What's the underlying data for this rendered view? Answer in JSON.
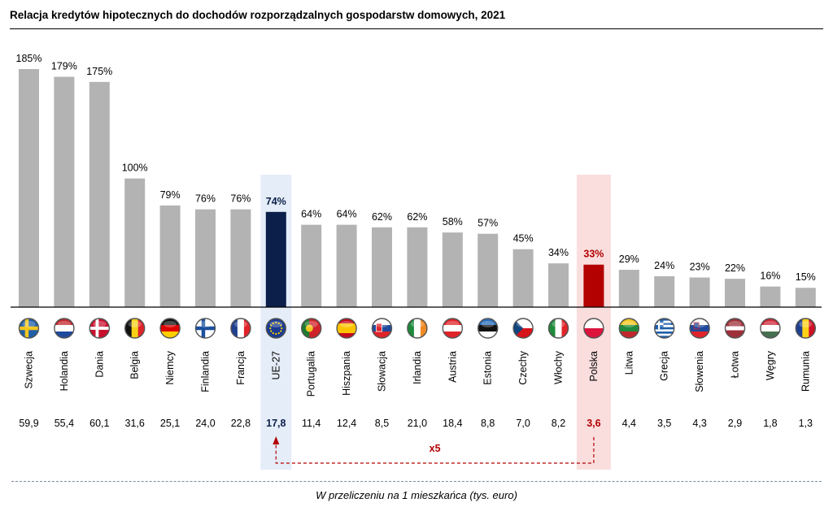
{
  "title": "Relacja kredytów hipotecznych do dochodów rozporządzalnych gospodarstw domowych, 2021",
  "footnote": "W przeliczeniu na 1 mieszkańca (tys. euro)",
  "ratio_label": "x5",
  "colors": {
    "bar_default": "#b3b3b3",
    "bar_eu": "#0c1f4b",
    "bar_poland": "#b30000",
    "highlight_eu": "#e4edf8",
    "highlight_poland": "#fadede",
    "eu_text": "#0c1f4b",
    "poland_text": "#b30000",
    "arrow": "#b30000"
  },
  "chart_data": {
    "type": "bar",
    "title": "Relacja kredytów hipotecznych do dochodów rozporządzalnych gospodarstw domowych, 2021",
    "xlabel": "",
    "ylabel": "",
    "ylim": [
      0,
      200
    ],
    "grid": false,
    "categories": [
      "Szwecja",
      "Holandia",
      "Dania",
      "Belgia",
      "Niemcy",
      "Finlandia",
      "Francja",
      "UE-27",
      "Portugalia",
      "Hiszpania",
      "Słowacja",
      "Irlandia",
      "Austria",
      "Estonia",
      "Czechy",
      "Włochy",
      "Polska",
      "Litwa",
      "Grecja",
      "Słowenia",
      "Łotwa",
      "Węgry",
      "Rumunia"
    ],
    "value_labels": [
      "185%",
      "179%",
      "175%",
      "100%",
      "79%",
      "76%",
      "76%",
      "74%",
      "64%",
      "64%",
      "62%",
      "62%",
      "58%",
      "57%",
      "45%",
      "34%",
      "33%",
      "29%",
      "24%",
      "23%",
      "22%",
      "16%",
      "15%"
    ],
    "series": [
      {
        "values": [
          185,
          179,
          175,
          100,
          79,
          76,
          76,
          74,
          64,
          64,
          62,
          62,
          58,
          57,
          45,
          34,
          33,
          29,
          24,
          23,
          22,
          16,
          15
        ]
      },
      {
        "values_labels": [
          "59,9",
          "55,4",
          "60,1",
          "31,6",
          "25,1",
          "24,0",
          "22,8",
          "17,8",
          "11,4",
          "12,4",
          "8,5",
          "21,0",
          "18,4",
          "8,8",
          "7,0",
          "8,2",
          "3,6",
          "4,4",
          "3,5",
          "4,3",
          "2,9",
          "1,8",
          "1,3"
        ],
        "values": [
          59.9,
          55.4,
          60.1,
          31.6,
          25.1,
          24.0,
          22.8,
          17.8,
          11.4,
          12.4,
          8.5,
          21.0,
          18.4,
          8.8,
          7.0,
          8.2,
          3.6,
          4.4,
          3.5,
          4.3,
          2.9,
          1.8,
          1.3
        ]
      }
    ],
    "highlight": {
      "eu": "UE-27",
      "poland": "Polska"
    },
    "flags": [
      "flag-sweden-icon",
      "flag-netherlands-icon",
      "flag-denmark-icon",
      "flag-belgium-icon",
      "flag-germany-icon",
      "flag-finland-icon",
      "flag-france-icon",
      "flag-eu-icon",
      "flag-portugal-icon",
      "flag-spain-icon",
      "flag-slovakia-icon",
      "flag-ireland-icon",
      "flag-austria-icon",
      "flag-estonia-icon",
      "flag-czechia-icon",
      "flag-italy-icon",
      "flag-poland-icon",
      "flag-lithuania-icon",
      "flag-greece-icon",
      "flag-slovenia-icon",
      "flag-latvia-icon",
      "flag-hungary-icon",
      "flag-romania-icon"
    ]
  }
}
